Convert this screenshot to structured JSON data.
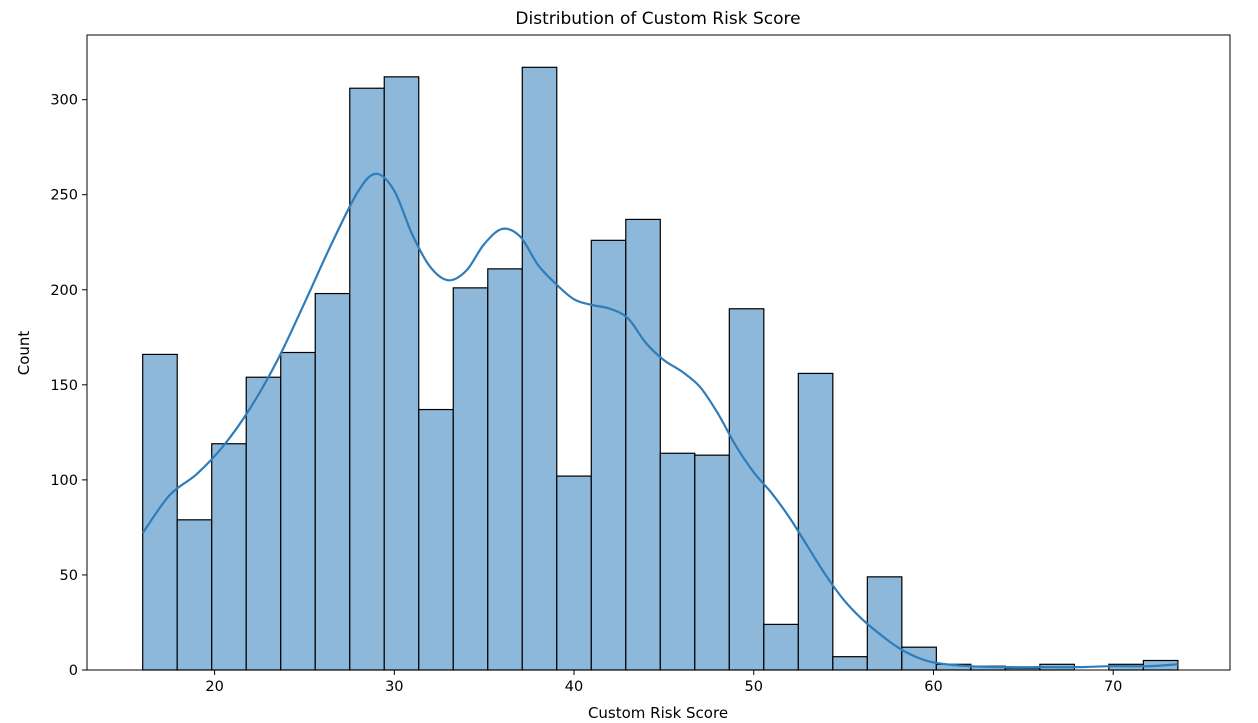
{
  "chart_data": {
    "type": "histogram",
    "title": "Distribution of Custom Risk Score",
    "xlabel": "Custom Risk Score",
    "ylabel": "Count",
    "xlim": [
      12.9,
      76.5
    ],
    "ylim": [
      0,
      334
    ],
    "x_ticks": [
      20,
      30,
      40,
      50,
      60,
      70
    ],
    "y_ticks": [
      0,
      50,
      100,
      150,
      200,
      250,
      300
    ],
    "grid": false,
    "bar_color": "#8db8da",
    "bar_edge_color": "#000000",
    "kde_color": "#2e7dbb",
    "bins": [
      {
        "x0": 16.0,
        "x1": 17.92,
        "count": 166
      },
      {
        "x0": 17.92,
        "x1": 19.84,
        "count": 79
      },
      {
        "x0": 19.84,
        "x1": 21.76,
        "count": 119
      },
      {
        "x0": 21.76,
        "x1": 23.68,
        "count": 154
      },
      {
        "x0": 23.68,
        "x1": 25.6,
        "count": 167
      },
      {
        "x0": 25.6,
        "x1": 27.52,
        "count": 198
      },
      {
        "x0": 27.52,
        "x1": 29.44,
        "count": 306
      },
      {
        "x0": 29.44,
        "x1": 31.36,
        "count": 312
      },
      {
        "x0": 31.36,
        "x1": 33.28,
        "count": 137
      },
      {
        "x0": 33.28,
        "x1": 35.2,
        "count": 201
      },
      {
        "x0": 35.2,
        "x1": 37.12,
        "count": 211
      },
      {
        "x0": 37.12,
        "x1": 39.04,
        "count": 317
      },
      {
        "x0": 39.04,
        "x1": 40.96,
        "count": 102
      },
      {
        "x0": 40.96,
        "x1": 42.88,
        "count": 226
      },
      {
        "x0": 42.88,
        "x1": 44.8,
        "count": 237
      },
      {
        "x0": 44.8,
        "x1": 46.72,
        "count": 114
      },
      {
        "x0": 46.72,
        "x1": 48.64,
        "count": 113
      },
      {
        "x0": 48.64,
        "x1": 50.56,
        "count": 190
      },
      {
        "x0": 50.56,
        "x1": 52.48,
        "count": 24
      },
      {
        "x0": 52.48,
        "x1": 54.4,
        "count": 156
      },
      {
        "x0": 54.4,
        "x1": 56.32,
        "count": 7
      },
      {
        "x0": 56.32,
        "x1": 58.24,
        "count": 49
      },
      {
        "x0": 58.24,
        "x1": 60.16,
        "count": 12
      },
      {
        "x0": 60.16,
        "x1": 62.08,
        "count": 3
      },
      {
        "x0": 62.08,
        "x1": 64.0,
        "count": 2
      },
      {
        "x0": 64.0,
        "x1": 65.92,
        "count": 1
      },
      {
        "x0": 65.92,
        "x1": 67.84,
        "count": 3
      },
      {
        "x0": 67.84,
        "x1": 69.76,
        "count": 0
      },
      {
        "x0": 69.76,
        "x1": 71.68,
        "count": 3
      },
      {
        "x0": 71.68,
        "x1": 73.6,
        "count": 5
      }
    ],
    "kde": {
      "x": [
        16.0,
        17.5,
        19.0,
        20.5,
        22.0,
        23.5,
        25.0,
        26.5,
        28.0,
        29.0,
        30.0,
        31.0,
        32.0,
        33.0,
        34.0,
        35.0,
        36.0,
        37.0,
        38.0,
        39.0,
        40.0,
        41.0,
        42.0,
        43.0,
        44.0,
        45.0,
        46.0,
        47.0,
        48.0,
        49.0,
        50.0,
        51.0,
        52.0,
        53.0,
        54.0,
        55.0,
        56.0,
        57.0,
        58.0,
        59.0,
        60.0,
        62.0,
        64.0,
        66.0,
        68.0,
        70.0,
        72.0,
        73.6
      ],
      "y": [
        72,
        92,
        103,
        118,
        138,
        163,
        193,
        224,
        252,
        261,
        252,
        229,
        212,
        205,
        210,
        224,
        232,
        228,
        213,
        203,
        195,
        192,
        190,
        185,
        172,
        163,
        157,
        149,
        135,
        118,
        104,
        93,
        80,
        65,
        50,
        37,
        27,
        19,
        12,
        7,
        4,
        2,
        1.5,
        1.5,
        1.5,
        2,
        2,
        3
      ]
    }
  }
}
